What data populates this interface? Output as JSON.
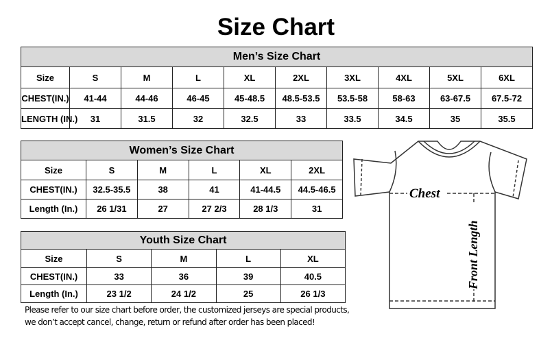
{
  "title": "Size Chart",
  "men": {
    "heading": "Men’s Size Chart",
    "rows": [
      [
        "Size",
        "S",
        "M",
        "L",
        "XL",
        "2XL",
        "3XL",
        "4XL",
        "5XL",
        "6XL"
      ],
      [
        "CHEST(IN.)",
        "41-44",
        "44-46",
        "46-45",
        "45-48.5",
        "48.5-53.5",
        "53.5-58",
        "58-63",
        "63-67.5",
        "67.5-72"
      ],
      [
        "LENGTH (IN.)",
        "31",
        "31.5",
        "32",
        "32.5",
        "33",
        "33.5",
        "34.5",
        "35",
        "35.5"
      ]
    ]
  },
  "women": {
    "heading": "Women’s Size Chart",
    "rows": [
      [
        "Size",
        "S",
        "M",
        "L",
        "XL",
        "2XL"
      ],
      [
        "CHEST(IN.)",
        "32.5-35.5",
        "38",
        "41",
        "41-44.5",
        "44.5-46.5"
      ],
      [
        "Length (In.)",
        "26 1/31",
        "27",
        "27 2/3",
        "28 1/3",
        "31"
      ]
    ]
  },
  "youth": {
    "heading": "Youth Size Chart",
    "rows": [
      [
        "Size",
        "S",
        "M",
        "L",
        "XL"
      ],
      [
        "CHEST(IN.)",
        "33",
        "36",
        "39",
        "40.5"
      ],
      [
        "Length (In.)",
        "23 1/2",
        "24 1/2",
        "25",
        "26 1/3"
      ]
    ]
  },
  "note": [
    "Please refer to our size chart before order, the customized jerseys are special products,",
    "we don’t accept cancel, change, return or refund after order has been placed!"
  ],
  "diagram": {
    "chest_label": "Chest",
    "length_label": "Front Length"
  }
}
